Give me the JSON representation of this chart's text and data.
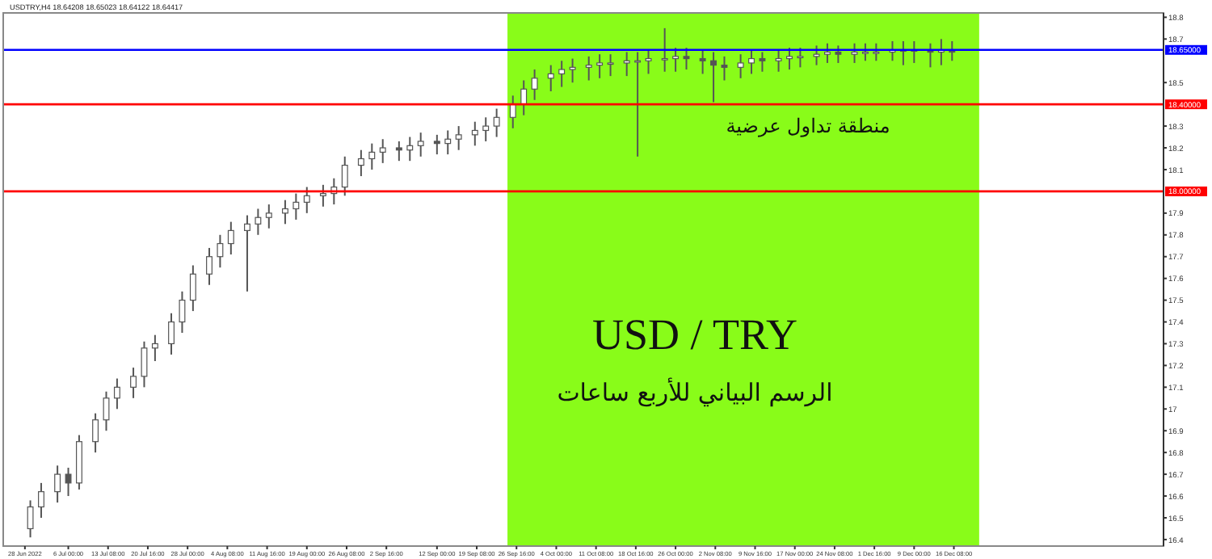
{
  "chart_data": {
    "type": "candlestick",
    "title": "USD / TRY",
    "subtitle": "الرسم البياني للأربع ساعات",
    "annotations": [
      "USDTRY,H4 18.64208 18.65023 18.64122 18.64417",
      "منطقة تداول عرضية"
    ],
    "x": [
      "2022-06-29",
      "2022-07-01",
      "2022-07-04",
      "2022-07-06",
      "2022-07-08",
      "2022-07-11",
      "2022-07-13",
      "2022-07-15",
      "2022-07-18",
      "2022-07-20",
      "2022-07-22",
      "2022-07-25",
      "2022-07-27",
      "2022-07-29",
      "2022-08-01",
      "2022-08-03",
      "2022-08-05",
      "2022-08-08",
      "2022-08-10",
      "2022-08-12",
      "2022-08-15",
      "2022-08-17",
      "2022-08-19",
      "2022-08-22",
      "2022-08-24",
      "2022-08-26",
      "2022-08-29",
      "2022-08-31",
      "2022-09-02",
      "2022-09-05",
      "2022-09-07",
      "2022-09-09",
      "2022-09-12",
      "2022-09-14",
      "2022-09-16",
      "2022-09-19",
      "2022-09-21",
      "2022-09-23",
      "2022-09-26",
      "2022-09-28",
      "2022-09-30",
      "2022-10-03",
      "2022-10-05",
      "2022-10-07",
      "2022-10-10",
      "2022-10-12",
      "2022-10-14",
      "2022-10-17",
      "2022-10-19",
      "2022-10-21",
      "2022-10-24",
      "2022-10-26",
      "2022-10-28",
      "2022-10-31",
      "2022-11-02",
      "2022-11-04",
      "2022-11-07",
      "2022-11-09",
      "2022-11-11",
      "2022-11-14",
      "2022-11-16",
      "2022-11-18",
      "2022-11-21",
      "2022-11-23",
      "2022-11-25",
      "2022-11-28",
      "2022-11-30",
      "2022-12-02",
      "2022-12-05",
      "2022-12-07",
      "2022-12-09",
      "2022-12-12",
      "2022-12-14",
      "2022-12-16"
    ],
    "ohlc": [
      [
        16.45,
        16.58,
        16.41,
        16.55
      ],
      [
        16.55,
        16.66,
        16.5,
        16.62
      ],
      [
        16.62,
        16.74,
        16.57,
        16.7
      ],
      [
        16.7,
        16.73,
        16.6,
        16.66
      ],
      [
        16.66,
        16.88,
        16.63,
        16.85
      ],
      [
        16.85,
        16.98,
        16.8,
        16.95
      ],
      [
        16.95,
        17.08,
        16.9,
        17.05
      ],
      [
        17.05,
        17.14,
        17.0,
        17.1
      ],
      [
        17.1,
        17.19,
        17.05,
        17.15
      ],
      [
        17.15,
        17.31,
        17.1,
        17.28
      ],
      [
        17.28,
        17.34,
        17.22,
        17.3
      ],
      [
        17.3,
        17.44,
        17.25,
        17.4
      ],
      [
        17.4,
        17.54,
        17.35,
        17.5
      ],
      [
        17.5,
        17.66,
        17.45,
        17.62
      ],
      [
        17.62,
        17.74,
        17.57,
        17.7
      ],
      [
        17.7,
        17.8,
        17.65,
        17.76
      ],
      [
        17.76,
        17.86,
        17.71,
        17.82
      ],
      [
        17.82,
        17.89,
        17.54,
        17.85
      ],
      [
        17.85,
        17.92,
        17.8,
        17.88
      ],
      [
        17.88,
        17.94,
        17.83,
        17.9
      ],
      [
        17.9,
        17.96,
        17.85,
        17.92
      ],
      [
        17.92,
        17.99,
        17.87,
        17.95
      ],
      [
        17.95,
        18.02,
        17.9,
        17.98
      ],
      [
        17.98,
        18.03,
        17.93,
        17.99
      ],
      [
        17.99,
        18.06,
        17.94,
        18.02
      ],
      [
        18.02,
        18.16,
        17.98,
        18.12
      ],
      [
        18.12,
        18.19,
        18.07,
        18.15
      ],
      [
        18.15,
        18.22,
        18.1,
        18.18
      ],
      [
        18.18,
        18.24,
        18.13,
        18.2
      ],
      [
        18.2,
        18.23,
        18.14,
        18.19
      ],
      [
        18.19,
        18.25,
        18.14,
        18.21
      ],
      [
        18.21,
        18.27,
        18.16,
        18.23
      ],
      [
        18.23,
        18.26,
        18.17,
        18.22
      ],
      [
        18.22,
        18.28,
        18.17,
        18.24
      ],
      [
        18.24,
        18.3,
        18.19,
        18.26
      ],
      [
        18.26,
        18.32,
        18.21,
        18.28
      ],
      [
        18.28,
        18.34,
        18.23,
        18.3
      ],
      [
        18.3,
        18.38,
        18.25,
        18.34
      ],
      [
        18.34,
        18.44,
        18.29,
        18.4
      ],
      [
        18.4,
        18.51,
        18.35,
        18.47
      ],
      [
        18.47,
        18.56,
        18.42,
        18.52
      ],
      [
        18.52,
        18.58,
        18.46,
        18.54
      ],
      [
        18.54,
        18.6,
        18.48,
        18.56
      ],
      [
        18.56,
        18.61,
        18.5,
        18.57
      ],
      [
        18.57,
        18.62,
        18.51,
        18.58
      ],
      [
        18.58,
        18.63,
        18.52,
        18.59
      ],
      [
        18.59,
        18.63,
        18.53,
        18.59
      ],
      [
        18.59,
        18.64,
        18.53,
        18.6
      ],
      [
        18.6,
        18.64,
        18.16,
        18.6
      ],
      [
        18.6,
        18.65,
        18.54,
        18.61
      ],
      [
        18.61,
        18.75,
        18.55,
        18.61
      ],
      [
        18.61,
        18.66,
        18.55,
        18.62
      ],
      [
        18.62,
        18.66,
        18.56,
        18.61
      ],
      [
        18.61,
        18.65,
        18.54,
        18.6
      ],
      [
        18.6,
        18.64,
        18.41,
        18.58
      ],
      [
        18.58,
        18.62,
        18.51,
        18.57
      ],
      [
        18.57,
        18.63,
        18.52,
        18.59
      ],
      [
        18.59,
        18.65,
        18.54,
        18.61
      ],
      [
        18.61,
        18.64,
        18.55,
        18.6
      ],
      [
        18.6,
        18.65,
        18.55,
        18.61
      ],
      [
        18.61,
        18.66,
        18.56,
        18.62
      ],
      [
        18.62,
        18.66,
        18.57,
        18.62
      ],
      [
        18.62,
        18.67,
        18.58,
        18.63
      ],
      [
        18.63,
        18.68,
        18.59,
        18.64
      ],
      [
        18.64,
        18.67,
        18.59,
        18.63
      ],
      [
        18.63,
        18.68,
        18.59,
        18.64
      ],
      [
        18.64,
        18.68,
        18.6,
        18.64
      ],
      [
        18.64,
        18.68,
        18.6,
        18.64
      ],
      [
        18.64,
        18.69,
        18.6,
        18.65
      ],
      [
        18.65,
        18.69,
        18.58,
        18.65
      ],
      [
        18.65,
        18.69,
        18.59,
        18.65
      ],
      [
        18.65,
        18.68,
        18.57,
        18.64
      ],
      [
        18.64,
        18.7,
        18.58,
        18.65
      ],
      [
        18.65,
        18.69,
        18.6,
        18.64
      ]
    ],
    "color": "#555555",
    "xlim": [
      "2022-06-24",
      "2023-01-24"
    ],
    "xticks": [
      {
        "value": "2022-06-28",
        "label": "28 Jun 2022"
      },
      {
        "value": "2022-07-06T00:00",
        "label": "6 Jul 00:00"
      },
      {
        "value": "2022-07-13T08:00",
        "label": "13 Jul 08:00"
      },
      {
        "value": "2022-07-20T16:00",
        "label": "20 Jul 16:00"
      },
      {
        "value": "2022-07-28T00:00",
        "label": "28 Jul 00:00"
      },
      {
        "value": "2022-08-04T08:00",
        "label": "4 Aug 08:00"
      },
      {
        "value": "2022-08-11T16:00",
        "label": "11 Aug 16:00"
      },
      {
        "value": "2022-08-19T00:00",
        "label": "19 Aug 00:00"
      },
      {
        "value": "2022-08-26T08:00",
        "label": "26 Aug 08:00"
      },
      {
        "value": "2022-09-02T16:00",
        "label": "2 Sep 16:00"
      },
      {
        "value": "2022-09-12T00:00",
        "label": "12 Sep 00:00"
      },
      {
        "value": "2022-09-19T08:00",
        "label": "19 Sep 08:00"
      },
      {
        "value": "2022-09-26T16:00",
        "label": "26 Sep 16:00"
      },
      {
        "value": "2022-10-04T00:00",
        "label": "4 Oct 00:00"
      },
      {
        "value": "2022-10-11T08:00",
        "label": "11 Oct 08:00"
      },
      {
        "value": "2022-10-18T16:00",
        "label": "18 Oct 16:00"
      },
      {
        "value": "2022-10-26T00:00",
        "label": "26 Oct 00:00"
      },
      {
        "value": "2022-11-02T08:00",
        "label": "2 Nov 08:00"
      },
      {
        "value": "2022-11-09T16:00",
        "label": "9 Nov 16:00"
      },
      {
        "value": "2022-11-17T00:00",
        "label": "17 Nov 00:00"
      },
      {
        "value": "2022-11-24T08:00",
        "label": "24 Nov 08:00"
      },
      {
        "value": "2022-12-01T16:00",
        "label": "1 Dec 16:00"
      },
      {
        "value": "2022-12-09T00:00",
        "label": "9 Dec 00:00"
      },
      {
        "value": "2022-12-16T08:00",
        "label": "16 Dec 08:00"
      }
    ],
    "ylim": [
      16.37,
      18.82
    ],
    "yticks": [
      16.4,
      16.5,
      16.6,
      16.7,
      16.8,
      16.9,
      17.0,
      17.1,
      17.2,
      17.3,
      17.4,
      17.5,
      17.6,
      17.7,
      17.8,
      17.9,
      18.1,
      18.2,
      18.3,
      18.5,
      18.7,
      18.8
    ],
    "ref_lines": [
      {
        "axis": "y",
        "value": 18.65,
        "label": "18.65000",
        "color": "#0000ff"
      },
      {
        "axis": "y",
        "value": 18.4,
        "label": "18.40000",
        "color": "#ff0000"
      },
      {
        "axis": "y",
        "value": 18.0,
        "label": "18.00000",
        "color": "#ff0000"
      }
    ],
    "bands": [
      {
        "axis": "x",
        "from": "2022-09-25",
        "to": "2022-12-21",
        "color": "#7cfc00"
      }
    ],
    "grid": false
  }
}
